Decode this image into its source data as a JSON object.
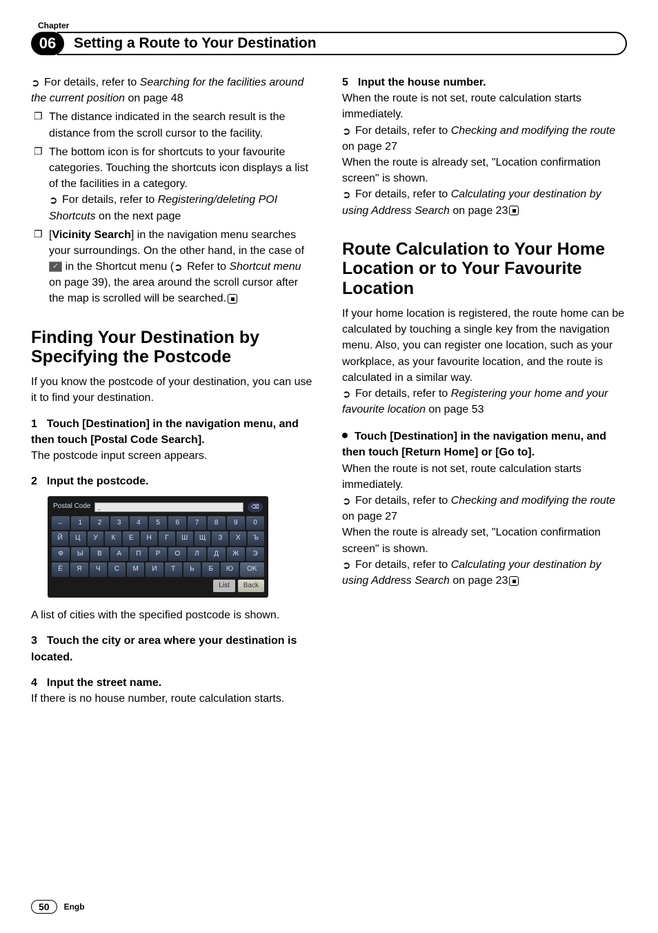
{
  "chapter_label": "Chapter",
  "chapter_number": "06",
  "page_title": "Setting a Route to Your Destination",
  "left": {
    "intro_ref": "For details, refer to ",
    "intro_ref_italic": "Searching for the facilities around the current position",
    "intro_ref_tail": " on page 48",
    "bullet1": "The distance indicated in the search result is the distance from the scroll cursor to the facility.",
    "bullet2": "The bottom icon is for shortcuts to your favourite categories. Touching the shortcuts icon displays a list of the facilities in a category.",
    "bullet2_ref": "For details, refer to ",
    "bullet2_ref_italic": "Registering/deleting POI Shortcuts",
    "bullet2_ref_tail": " on the next page",
    "bullet3_pre": "[",
    "bullet3_bold": "Vicinity Search",
    "bullet3_mid": "] in the navigation menu searches your surroundings. On the other hand, in the case of ",
    "bullet3_chip": "✓",
    "bullet3_mid2": " in the Shortcut menu (",
    "bullet3_refer": "Refer to ",
    "bullet3_refer_italic": "Shortcut menu",
    "bullet3_refer_tail": " on page 39), the area around the scroll cursor after the map is scrolled will be searched.",
    "h2": "Finding Your Destination by Specifying the Postcode",
    "h2_sub": "If you know the postcode of your destination, you can use it to find your destination.",
    "step1_head": "Touch [Destination] in the navigation menu, and then touch [Postal Code Search].",
    "step1_body": "The postcode input screen appears.",
    "step2_head": "Input the postcode.",
    "step2_body": "A list of cities with the specified postcode is shown.",
    "step3_head": "Touch the city or area where your destination is located.",
    "step4_head": "Input the street name.",
    "step4_body": "If there is no house number, route calculation starts.",
    "keyboard": {
      "label": "Postal Code",
      "input": "_",
      "rows": [
        [
          "←",
          "1",
          "2",
          "3",
          "4",
          "5",
          "6",
          "7",
          "8",
          "9",
          "0"
        ],
        [
          "Й",
          "Ц",
          "У",
          "К",
          "Е",
          "Н",
          "Г",
          "Ш",
          "Щ",
          "З",
          "Х",
          "Ъ"
        ],
        [
          "Ф",
          "Ы",
          "В",
          "А",
          "П",
          "Р",
          "О",
          "Л",
          "Д",
          "Ж",
          "Э"
        ],
        [
          "Ё",
          "Я",
          "Ч",
          "С",
          "М",
          "И",
          "Т",
          "Ь",
          "Б",
          "Ю",
          "OK"
        ]
      ],
      "list_btn": "List",
      "back_btn": "Back"
    }
  },
  "right": {
    "step5_head": "Input the house number.",
    "step5_body1": "When the route is not set, route calculation starts immediately.",
    "step5_ref1": "For details, refer to ",
    "step5_ref1_italic": "Checking and modifying the route",
    "step5_ref1_tail": " on page 27",
    "step5_body2": "When the route is already set, \"Location confirmation screen\" is shown.",
    "step5_ref2": "For details, refer to ",
    "step5_ref2_italic": "Calculating your destination by using Address Search",
    "step5_ref2_tail": " on page 23",
    "h2": "Route Calculation to Your Home Location or to Your Favourite Location",
    "h2_body": "If your home location is registered, the route home can be calculated by touching a single key from the navigation menu. Also, you can register one location, such as your workplace, as your favourite location, and the route is calculated in a similar way.",
    "h2_ref": "For details, refer to ",
    "h2_ref_italic": "Registering your home and your favourite location",
    "h2_ref_tail": " on page 53",
    "bullet_step": "Touch [Destination] in the navigation menu, and then touch [Return Home] or [Go to].",
    "bs_body1": "When the route is not set, route calculation starts immediately.",
    "bs_ref1": "For details, refer to ",
    "bs_ref1_italic": "Checking and modifying the route",
    "bs_ref1_tail": " on page 27",
    "bs_body2": "When the route is already set, \"Location confirmation screen\" is shown.",
    "bs_ref2": "For details, refer to ",
    "bs_ref2_italic": "Calculating your destination by using Address Search",
    "bs_ref2_tail": " on page 23"
  },
  "footer": {
    "page": "50",
    "lang": "Engb"
  },
  "colors": {
    "text": "#000000",
    "bg": "#ffffff",
    "badge_bg": "#000000",
    "badge_fg": "#ffffff",
    "keyboard_bg": "#1a1a1a",
    "key_grad_top": "#4a5a70",
    "key_grad_bottom": "#2a3548"
  }
}
